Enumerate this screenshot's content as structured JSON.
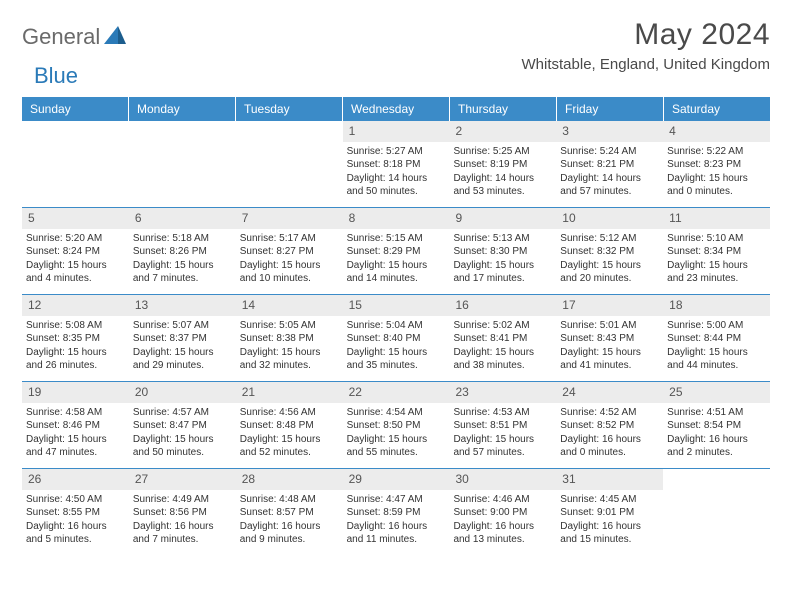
{
  "logo": {
    "general": "General",
    "blue": "Blue"
  },
  "title": "May 2024",
  "location": "Whitstable, England, United Kingdom",
  "colors": {
    "header_bg": "#3b8bc8",
    "header_text": "#ffffff",
    "daynum_bg": "#ececec",
    "text": "#333333",
    "rule": "#3b8bc8",
    "logo_gray": "#6a6a6a",
    "logo_blue": "#2a7ab8"
  },
  "day_headers": [
    "Sunday",
    "Monday",
    "Tuesday",
    "Wednesday",
    "Thursday",
    "Friday",
    "Saturday"
  ],
  "weeks": [
    [
      null,
      null,
      null,
      {
        "n": "1",
        "sr": "5:27 AM",
        "ss": "8:18 PM",
        "dl": "14 hours and 50 minutes."
      },
      {
        "n": "2",
        "sr": "5:25 AM",
        "ss": "8:19 PM",
        "dl": "14 hours and 53 minutes."
      },
      {
        "n": "3",
        "sr": "5:24 AM",
        "ss": "8:21 PM",
        "dl": "14 hours and 57 minutes."
      },
      {
        "n": "4",
        "sr": "5:22 AM",
        "ss": "8:23 PM",
        "dl": "15 hours and 0 minutes."
      }
    ],
    [
      {
        "n": "5",
        "sr": "5:20 AM",
        "ss": "8:24 PM",
        "dl": "15 hours and 4 minutes."
      },
      {
        "n": "6",
        "sr": "5:18 AM",
        "ss": "8:26 PM",
        "dl": "15 hours and 7 minutes."
      },
      {
        "n": "7",
        "sr": "5:17 AM",
        "ss": "8:27 PM",
        "dl": "15 hours and 10 minutes."
      },
      {
        "n": "8",
        "sr": "5:15 AM",
        "ss": "8:29 PM",
        "dl": "15 hours and 14 minutes."
      },
      {
        "n": "9",
        "sr": "5:13 AM",
        "ss": "8:30 PM",
        "dl": "15 hours and 17 minutes."
      },
      {
        "n": "10",
        "sr": "5:12 AM",
        "ss": "8:32 PM",
        "dl": "15 hours and 20 minutes."
      },
      {
        "n": "11",
        "sr": "5:10 AM",
        "ss": "8:34 PM",
        "dl": "15 hours and 23 minutes."
      }
    ],
    [
      {
        "n": "12",
        "sr": "5:08 AM",
        "ss": "8:35 PM",
        "dl": "15 hours and 26 minutes."
      },
      {
        "n": "13",
        "sr": "5:07 AM",
        "ss": "8:37 PM",
        "dl": "15 hours and 29 minutes."
      },
      {
        "n": "14",
        "sr": "5:05 AM",
        "ss": "8:38 PM",
        "dl": "15 hours and 32 minutes."
      },
      {
        "n": "15",
        "sr": "5:04 AM",
        "ss": "8:40 PM",
        "dl": "15 hours and 35 minutes."
      },
      {
        "n": "16",
        "sr": "5:02 AM",
        "ss": "8:41 PM",
        "dl": "15 hours and 38 minutes."
      },
      {
        "n": "17",
        "sr": "5:01 AM",
        "ss": "8:43 PM",
        "dl": "15 hours and 41 minutes."
      },
      {
        "n": "18",
        "sr": "5:00 AM",
        "ss": "8:44 PM",
        "dl": "15 hours and 44 minutes."
      }
    ],
    [
      {
        "n": "19",
        "sr": "4:58 AM",
        "ss": "8:46 PM",
        "dl": "15 hours and 47 minutes."
      },
      {
        "n": "20",
        "sr": "4:57 AM",
        "ss": "8:47 PM",
        "dl": "15 hours and 50 minutes."
      },
      {
        "n": "21",
        "sr": "4:56 AM",
        "ss": "8:48 PM",
        "dl": "15 hours and 52 minutes."
      },
      {
        "n": "22",
        "sr": "4:54 AM",
        "ss": "8:50 PM",
        "dl": "15 hours and 55 minutes."
      },
      {
        "n": "23",
        "sr": "4:53 AM",
        "ss": "8:51 PM",
        "dl": "15 hours and 57 minutes."
      },
      {
        "n": "24",
        "sr": "4:52 AM",
        "ss": "8:52 PM",
        "dl": "16 hours and 0 minutes."
      },
      {
        "n": "25",
        "sr": "4:51 AM",
        "ss": "8:54 PM",
        "dl": "16 hours and 2 minutes."
      }
    ],
    [
      {
        "n": "26",
        "sr": "4:50 AM",
        "ss": "8:55 PM",
        "dl": "16 hours and 5 minutes."
      },
      {
        "n": "27",
        "sr": "4:49 AM",
        "ss": "8:56 PM",
        "dl": "16 hours and 7 minutes."
      },
      {
        "n": "28",
        "sr": "4:48 AM",
        "ss": "8:57 PM",
        "dl": "16 hours and 9 minutes."
      },
      {
        "n": "29",
        "sr": "4:47 AM",
        "ss": "8:59 PM",
        "dl": "16 hours and 11 minutes."
      },
      {
        "n": "30",
        "sr": "4:46 AM",
        "ss": "9:00 PM",
        "dl": "16 hours and 13 minutes."
      },
      {
        "n": "31",
        "sr": "4:45 AM",
        "ss": "9:01 PM",
        "dl": "16 hours and 15 minutes."
      },
      null
    ]
  ],
  "labels": {
    "sunrise": "Sunrise:",
    "sunset": "Sunset:",
    "daylight": "Daylight:"
  }
}
